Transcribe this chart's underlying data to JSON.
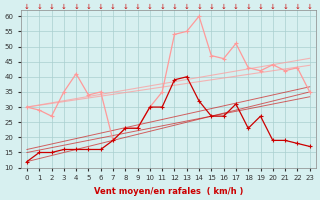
{
  "x": [
    0,
    1,
    2,
    3,
    4,
    5,
    6,
    7,
    8,
    9,
    10,
    11,
    12,
    13,
    14,
    15,
    16,
    17,
    18,
    19,
    20,
    21,
    22,
    23
  ],
  "line1": [
    12,
    15,
    15,
    16,
    16,
    16,
    16,
    19,
    23,
    23,
    30,
    30,
    39,
    40,
    32,
    27,
    27,
    31,
    23,
    27,
    19,
    19,
    18,
    17
  ],
  "line2": [
    30,
    29,
    27,
    35,
    41,
    34,
    35,
    19,
    23,
    23,
    30,
    35,
    54,
    55,
    60,
    47,
    46,
    51,
    43,
    42,
    44,
    42,
    43,
    35
  ],
  "line3_straight1": [
    12,
    13,
    14,
    15,
    16,
    17,
    18,
    19,
    20,
    21,
    22,
    23,
    24,
    25,
    26,
    27,
    28,
    29,
    30,
    31,
    32,
    33,
    34,
    35
  ],
  "line3_straight2": [
    15,
    15.8,
    16.6,
    17.4,
    18.2,
    19,
    19.8,
    20.6,
    21.4,
    22.2,
    23,
    23.8,
    24.6,
    25.4,
    26.2,
    27,
    27.8,
    28.6,
    29.4,
    30.2,
    31,
    31.8,
    32.6,
    33.4
  ],
  "line3_straight3": [
    16,
    16.9,
    17.8,
    18.7,
    19.6,
    20.5,
    21.4,
    22.3,
    23.2,
    24.1,
    25,
    25.9,
    26.8,
    27.7,
    28.6,
    29.5,
    30.4,
    31.3,
    32.2,
    33.1,
    34,
    34.9,
    35.8,
    36.7
  ],
  "line3_straight4": [
    30,
    30.6,
    31.2,
    31.8,
    32.4,
    33,
    33.6,
    34.2,
    34.8,
    35.4,
    36,
    36.6,
    37.2,
    37.8,
    38.4,
    39,
    39.6,
    40.2,
    40.8,
    41.4,
    42,
    42.6,
    43.2,
    43.8
  ],
  "line3_straight5": [
    30,
    30.7,
    31.4,
    32.1,
    32.8,
    33.5,
    34.2,
    34.9,
    35.6,
    36.3,
    37,
    37.7,
    38.4,
    39.1,
    39.8,
    40.5,
    41.2,
    41.9,
    42.6,
    43.3,
    44,
    44.7,
    45.4,
    46.1
  ],
  "bg_color": "#d7f0f0",
  "grid_color": "#aacfcf",
  "line1_color": "#cc0000",
  "line2_color": "#ff9999",
  "straight_color_dark": "#cc0000",
  "straight_color_light": "#ff9999",
  "xlabel": "Vent moyen/en rafales  ( km/h )",
  "ylim": [
    10,
    62
  ],
  "xlim": [
    0,
    23
  ],
  "yticks": [
    10,
    15,
    20,
    25,
    30,
    35,
    40,
    45,
    50,
    55,
    60
  ],
  "xticks": [
    0,
    1,
    2,
    3,
    4,
    5,
    6,
    7,
    8,
    9,
    10,
    11,
    12,
    13,
    14,
    15,
    16,
    17,
    18,
    19,
    20,
    21,
    22,
    23
  ]
}
